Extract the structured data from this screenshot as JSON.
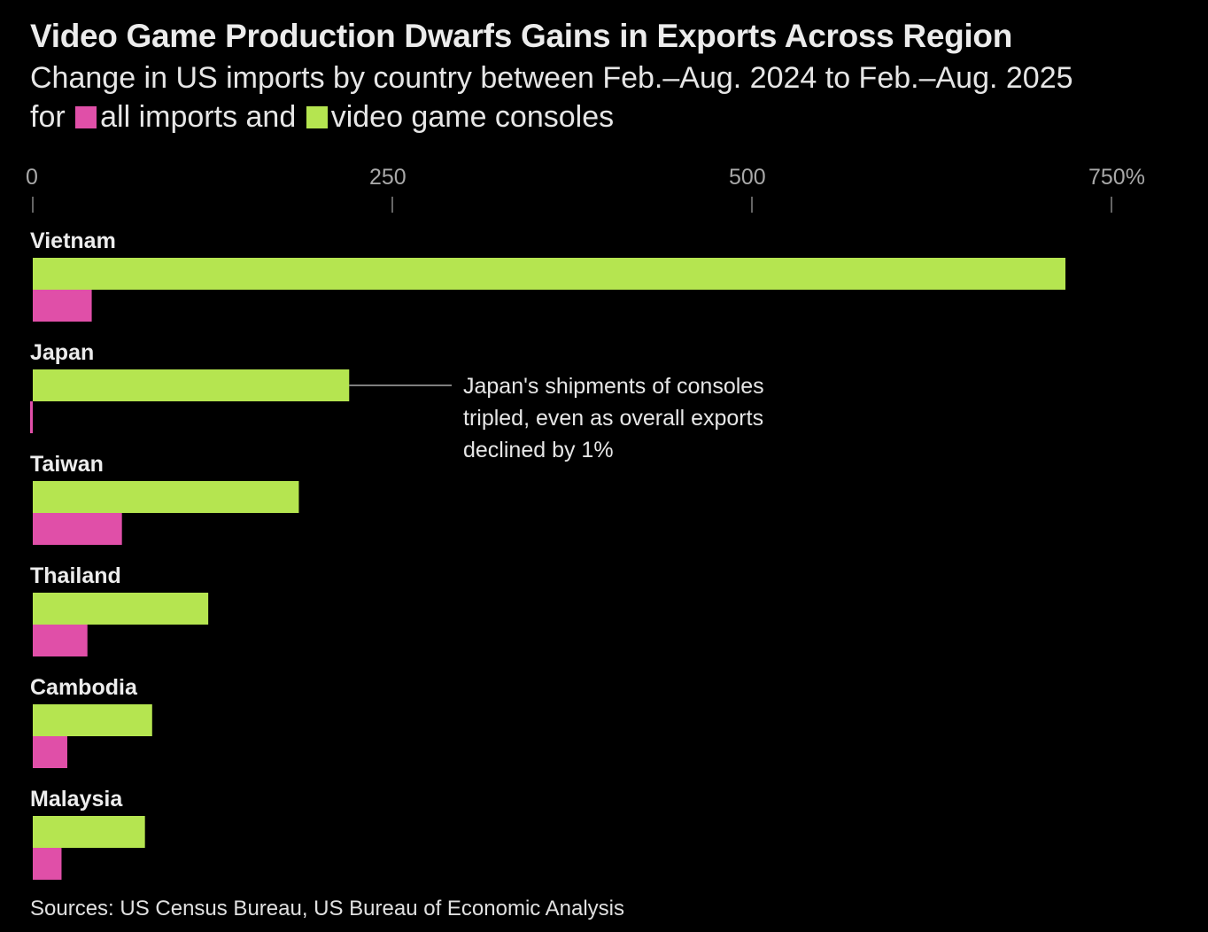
{
  "title": "Video Game Production Dwarfs Gains in Exports Across Region",
  "subtitle": {
    "prefix": "Change in US imports by country between Feb.–Aug. 2024 to Feb.–Aug. 2025 for",
    "legend_all": "all imports and",
    "legend_consoles": "video game consoles"
  },
  "source": "Sources: US Census Bureau, US Bureau of Economic Analysis",
  "colors": {
    "all_imports": "#e04fa8",
    "consoles": "#b5e550",
    "background": "#000000"
  },
  "chart_data": {
    "type": "bar",
    "orientation": "horizontal",
    "title": "Video Game Production Dwarfs Gains in Exports Across Region",
    "xlabel": "",
    "ylabel": "",
    "xlim": [
      0,
      750
    ],
    "ticks": [
      0,
      250,
      500,
      750
    ],
    "tick_labels": [
      "0",
      "250",
      "500",
      "750%"
    ],
    "grid": false,
    "legend": "inline-in-subtitle",
    "categories": [
      "Vietnam",
      "Japan",
      "Taiwan",
      "Thailand",
      "Cambodia",
      "Malaysia"
    ],
    "series": [
      {
        "name": "video game consoles",
        "color": "#b5e550",
        "values": [
          718,
          220,
          185,
          122,
          83,
          78
        ]
      },
      {
        "name": "all imports",
        "color": "#e04fa8",
        "values": [
          41,
          -1,
          62,
          38,
          24,
          20
        ]
      }
    ],
    "annotations": [
      {
        "category": "Japan",
        "series": "video game consoles",
        "lines": [
          "Japan's shipments of consoles",
          "tripled, even as overall exports",
          "declined by 1%"
        ]
      }
    ]
  }
}
